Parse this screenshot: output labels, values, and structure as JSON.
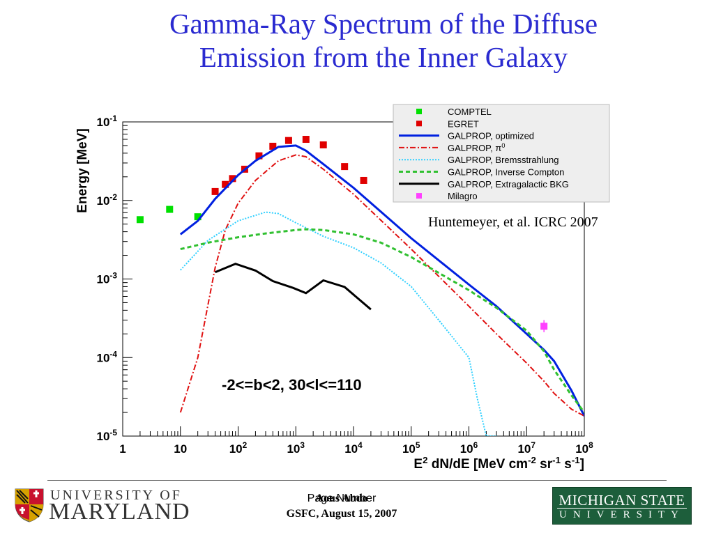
{
  "slide": {
    "title_line1": "Gamma-Ray Spectrum of the Diffuse",
    "title_line2": "Emission from the Inner Galaxy",
    "citation": "Huntemeyer, et al. ICRC 2007",
    "title_color": "#2a2ad0"
  },
  "footer": {
    "left_logo_line1": "UNIVERSITY OF",
    "left_logo_line2": "MARYLAND",
    "center_line1": "Aous Abdo",
    "center_overlay": "Page Number",
    "center_line2": "GSFC, August 15, 2007",
    "right_logo_line1": "MICHIGAN STATE",
    "right_logo_line2": "UNIVERSITY",
    "right_logo_color": "#1d5e3b"
  },
  "chart_data": {
    "type": "line",
    "xlabel": "E² dN/dE [MeV cm⁻² sr⁻¹ s⁻¹]",
    "ylabel": "Energy [MeV]",
    "xscale": "log",
    "yscale": "log",
    "xlim": [
      1,
      100000000
    ],
    "ylim": [
      1e-05,
      0.1
    ],
    "x_tick_labels": [
      "1",
      "10",
      "10²",
      "10³",
      "10⁴",
      "10⁵",
      "10⁶",
      "10⁷",
      "10⁸"
    ],
    "y_tick_labels": [
      "10⁻¹",
      "10⁻²",
      "10⁻³",
      "10⁻⁴",
      "10⁻⁵"
    ],
    "annotation": "-2<=b<2, 30<l<=110",
    "legend_position": "top-right",
    "series": [
      {
        "name": "COMPTEL",
        "kind": "points",
        "color": "#00e000",
        "marker": "square",
        "x": [
          2,
          6.5,
          20
        ],
        "y": [
          0.0057,
          0.0077,
          0.0062
        ]
      },
      {
        "name": "EGRET",
        "kind": "points",
        "color": "#e00000",
        "marker": "square",
        "x": [
          40,
          60,
          80,
          130,
          230,
          400,
          750,
          1500,
          3000,
          7000,
          15000
        ],
        "y": [
          0.013,
          0.016,
          0.019,
          0.025,
          0.037,
          0.049,
          0.058,
          0.06,
          0.051,
          0.027,
          0.018
        ]
      },
      {
        "name": "GALPROP, optimized",
        "kind": "line",
        "color": "#0020e0",
        "dash": "solid",
        "width": 3,
        "x": [
          10,
          20,
          40,
          100,
          200,
          500,
          1000,
          1500,
          3000,
          10000,
          100000,
          1000000,
          3000000,
          10000000,
          20000000,
          30000000,
          60000000,
          100000000
        ],
        "y": [
          0.0037,
          0.0055,
          0.0105,
          0.021,
          0.032,
          0.048,
          0.05,
          0.043,
          0.029,
          0.0145,
          0.0033,
          0.00085,
          0.00045,
          0.0002,
          0.000125,
          9e-05,
          3.8e-05,
          1.8e-05
        ]
      },
      {
        "name": "GALPROP, π⁰",
        "kind": "line",
        "color": "#e01010",
        "dash": "dashdot",
        "width": 2,
        "x": [
          10,
          20,
          40,
          60,
          100,
          200,
          500,
          1000,
          1500,
          3000,
          10000,
          100000,
          1000000,
          3000000,
          10000000,
          20000000,
          30000000,
          60000000,
          100000000
        ],
        "y": [
          2e-05,
          0.0001,
          0.0014,
          0.0042,
          0.0092,
          0.018,
          0.032,
          0.038,
          0.036,
          0.025,
          0.012,
          0.0024,
          0.00045,
          0.0002,
          8.5e-05,
          5e-05,
          3.5e-05,
          2.2e-05,
          1.8e-05
        ]
      },
      {
        "name": "GALPROP, Bremsstrahlung",
        "kind": "line",
        "color": "#30d0ff",
        "dash": "dotted",
        "width": 2,
        "x": [
          10,
          30,
          100,
          300,
          500,
          1000,
          3000,
          10000,
          30000,
          100000,
          300000,
          1000000,
          1400000,
          2000000,
          3000000
        ],
        "y": [
          0.0013,
          0.0031,
          0.0055,
          0.0071,
          0.0068,
          0.0052,
          0.0035,
          0.0025,
          0.0016,
          0.0008,
          0.0003,
          0.0001,
          3e-05,
          1e-05,
          1e-05
        ]
      },
      {
        "name": "GALPROP, Inverse Compton",
        "kind": "line",
        "color": "#30c030",
        "dash": "dashed",
        "width": 3,
        "x": [
          10,
          30,
          100,
          300,
          1000,
          1500,
          3000,
          10000,
          30000,
          100000,
          1000000,
          3000000,
          10000000,
          20000000,
          30000000,
          60000000,
          100000000
        ],
        "y": [
          0.0024,
          0.0029,
          0.0034,
          0.0038,
          0.0042,
          0.0043,
          0.0042,
          0.0037,
          0.0029,
          0.0019,
          0.00072,
          0.00043,
          0.00022,
          0.00012,
          7e-05,
          3.3e-05,
          2e-05
        ]
      },
      {
        "name": "GALPROP, Extragalactic BKG",
        "kind": "line",
        "color": "#000000",
        "dash": "solid",
        "width": 3,
        "x": [
          40,
          90,
          200,
          400,
          900,
          1500,
          3000,
          7000,
          20000
        ],
        "y": [
          0.00122,
          0.00156,
          0.00128,
          0.00094,
          0.00077,
          0.00066,
          0.00096,
          0.00079,
          0.00041
        ]
      },
      {
        "name": "Milagro",
        "kind": "points",
        "color": "#ff40ff",
        "marker": "square",
        "x": [
          20000000
        ],
        "y": [
          0.00025
        ],
        "yerr_low": 0.00021,
        "yerr_high": 0.0003
      }
    ]
  }
}
